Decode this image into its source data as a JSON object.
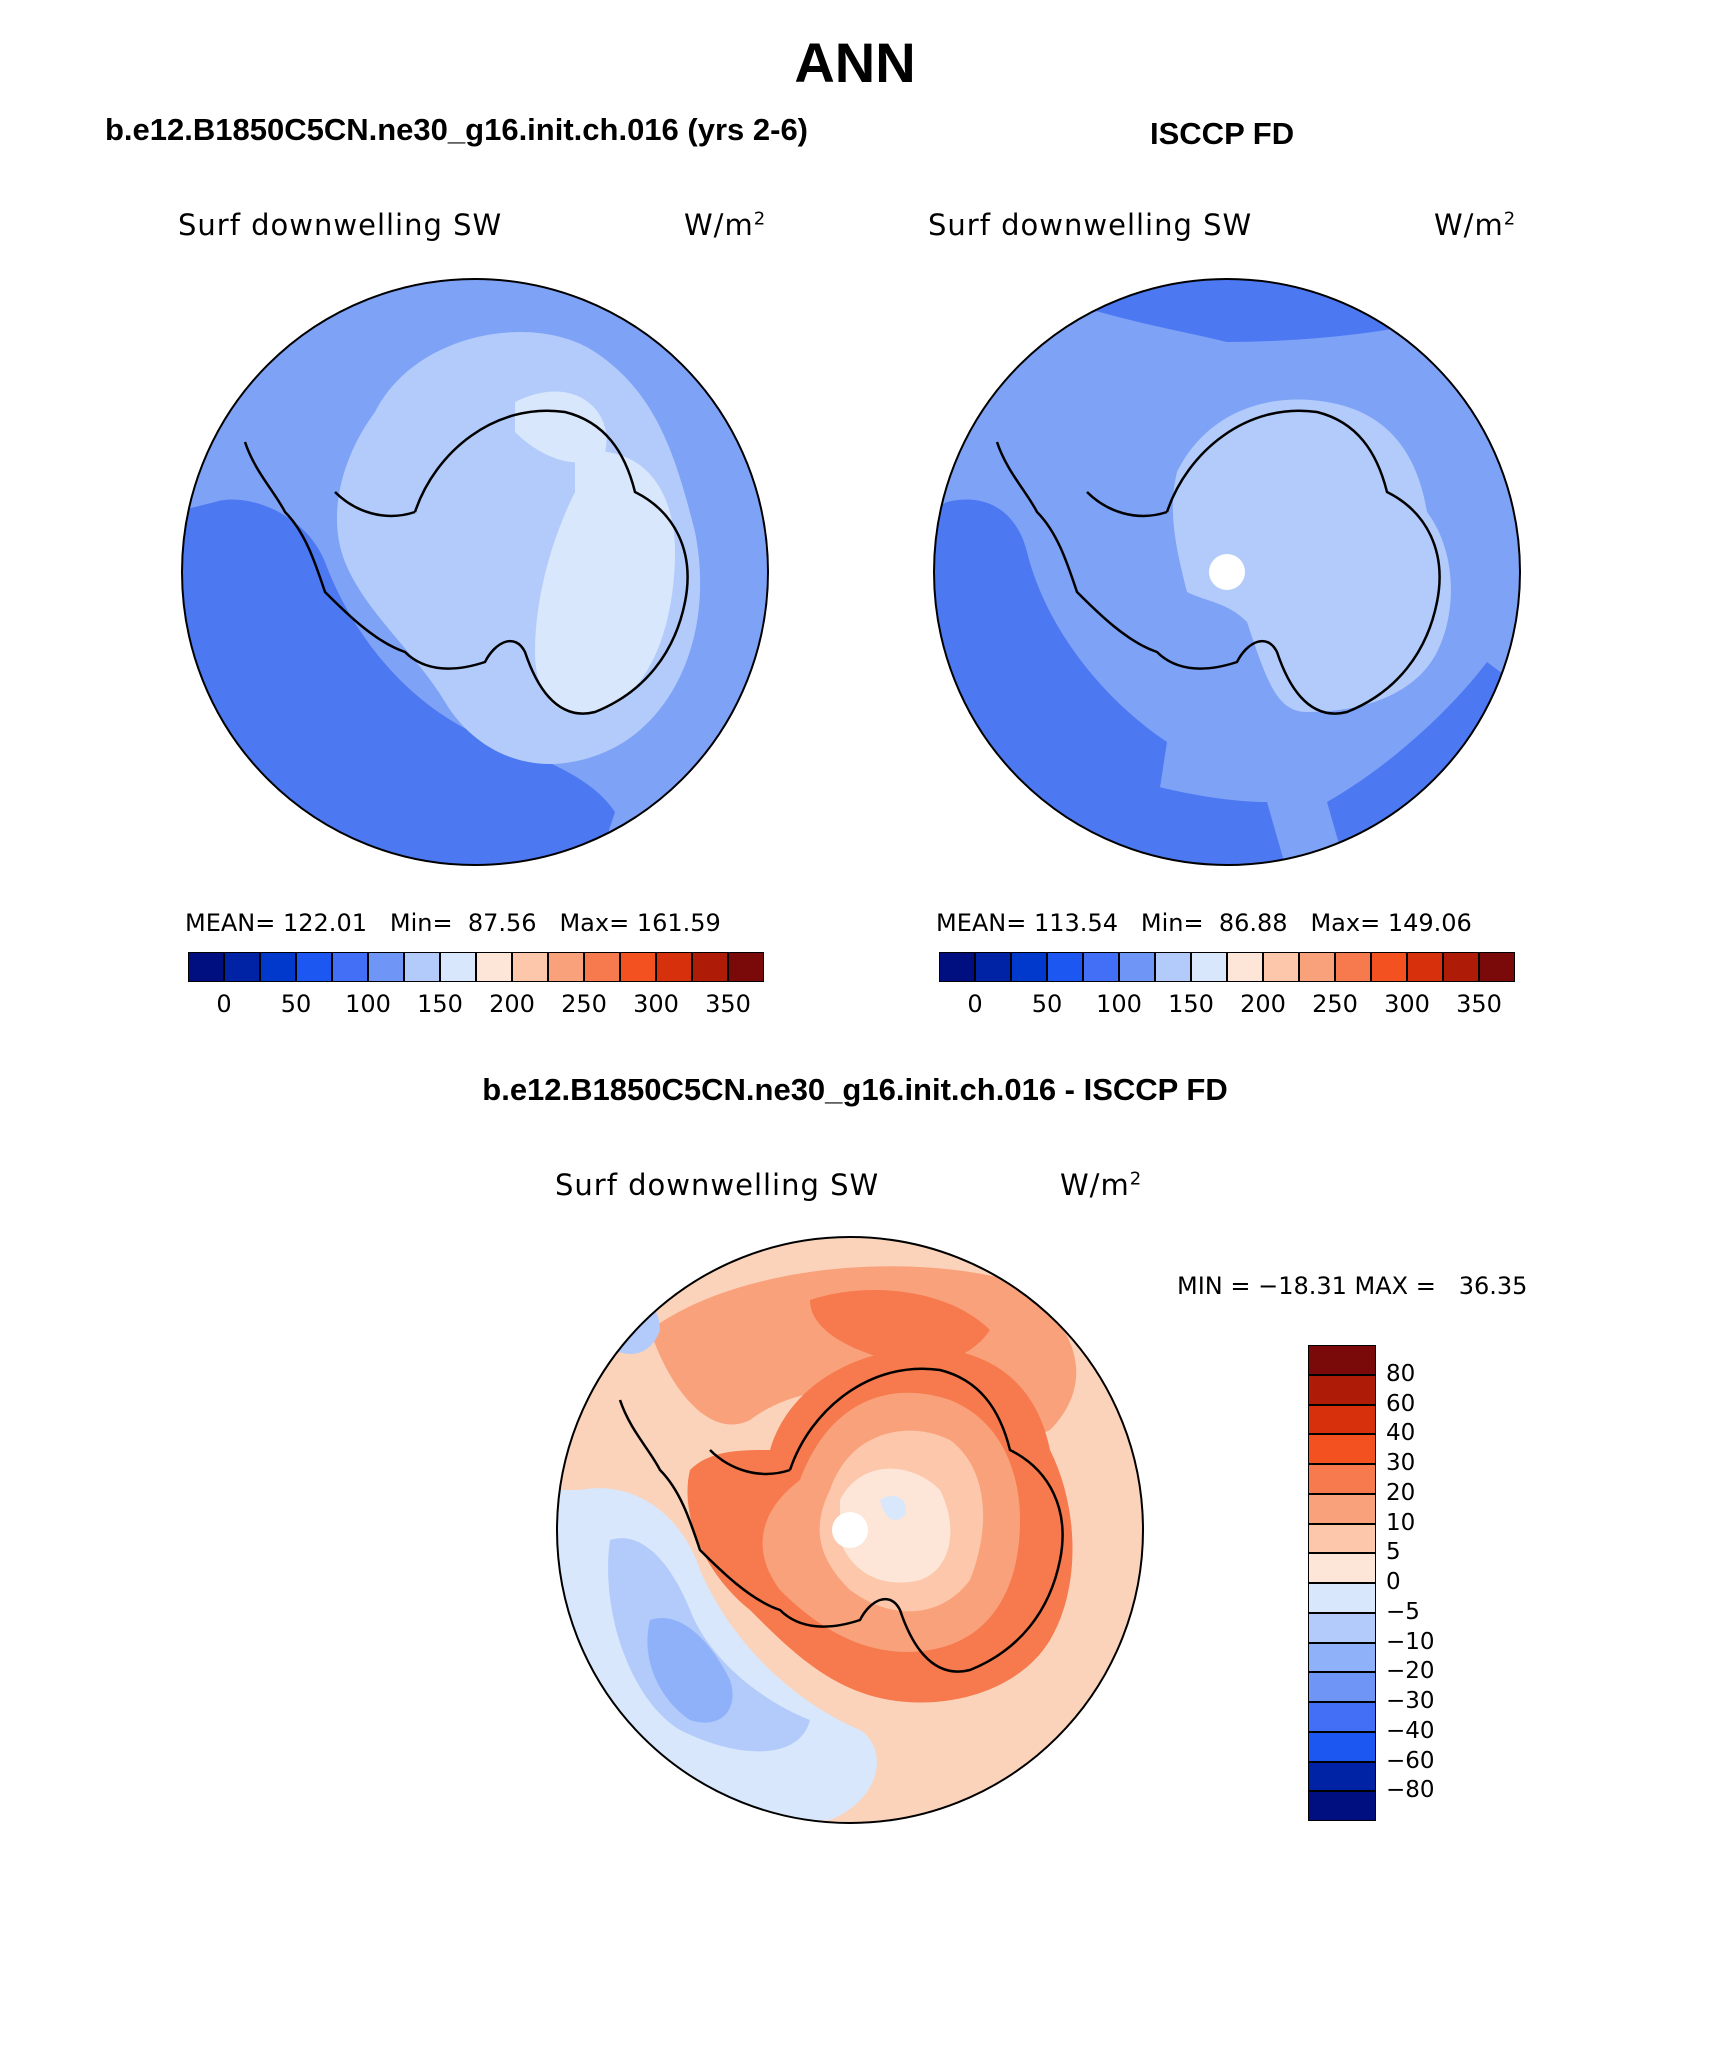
{
  "title": "ANN",
  "panels": [
    {
      "header": "b.e12.B1850C5CN.ne30_g16.init.ch.016 (yrs 2-6)",
      "variable": "Surf downwelling SW",
      "units_base": "W/m",
      "units_exp": "2",
      "stats": {
        "mean_label": "MEAN=",
        "mean": "122.01",
        "min_label": "Min=",
        "min": "87.56",
        "max_label": "Max=",
        "max": "161.59"
      }
    },
    {
      "header": "ISCCP FD",
      "variable": "Surf downwelling SW",
      "units_base": "W/m",
      "units_exp": "2",
      "stats": {
        "mean_label": "MEAN=",
        "mean": "113.54",
        "min_label": "Min=",
        "min": "86.88",
        "max_label": "Max=",
        "max": "149.06"
      }
    },
    {
      "header": "b.e12.B1850C5CN.ne30_g16.init.ch.016 - ISCCP FD",
      "variable": "Surf downwelling SW",
      "units_base": "W/m",
      "units_exp": "2",
      "minmax": "MIN = −18.31 MAX =   36.35"
    }
  ],
  "colorbar_abs": {
    "colors": [
      "#000f80",
      "#0023a6",
      "#0039cc",
      "#1b57f0",
      "#426ff5",
      "#6f95f7",
      "#b2cbfb",
      "#d8e7fc",
      "#fde6d7",
      "#fcc7aa",
      "#f9a17a",
      "#f67a4e",
      "#f3511f",
      "#d6300c",
      "#ae1b06",
      "#7a0a0a"
    ],
    "labels": [
      "0",
      "50",
      "100",
      "150",
      "200",
      "250",
      "300",
      "350"
    ]
  },
  "colorbar_diff": {
    "colors_top_to_bottom": [
      "#7a0a0a",
      "#ae1b06",
      "#d6300c",
      "#f3511f",
      "#f67a4e",
      "#f9a17a",
      "#fcc7aa",
      "#fde6d7",
      "#d8e7fc",
      "#b2cbfb",
      "#8fb1f9",
      "#6f95f7",
      "#426ff5",
      "#1b57f0",
      "#0023a6",
      "#000f80"
    ],
    "labels_top_to_bottom": [
      "80",
      "60",
      "40",
      "30",
      "20",
      "10",
      "5",
      "0",
      "−5",
      "−10",
      "−20",
      "−30",
      "−40",
      "−60",
      "−80"
    ]
  },
  "map_fills": {
    "model": {
      "outer": "#7ea2f6",
      "band_dark": "#4c79f2",
      "ring": "#b2cbfb",
      "interior": "#d8e7fc"
    },
    "obs": {
      "outer": "#7ea2f6",
      "band_dark": "#4c79f2",
      "ring": "#b2cbfb",
      "interior": "#b2cbfb"
    },
    "diff": {
      "outer": "#fbd3bb",
      "ring1": "#f9a17a",
      "ring2": "#f67a4e",
      "inner": "#fcc7aa",
      "center": "#fde6d7",
      "neg_light": "#d8e7fc",
      "neg_mid": "#b2cbfb",
      "neg_dark": "#8fb1f9"
    }
  }
}
